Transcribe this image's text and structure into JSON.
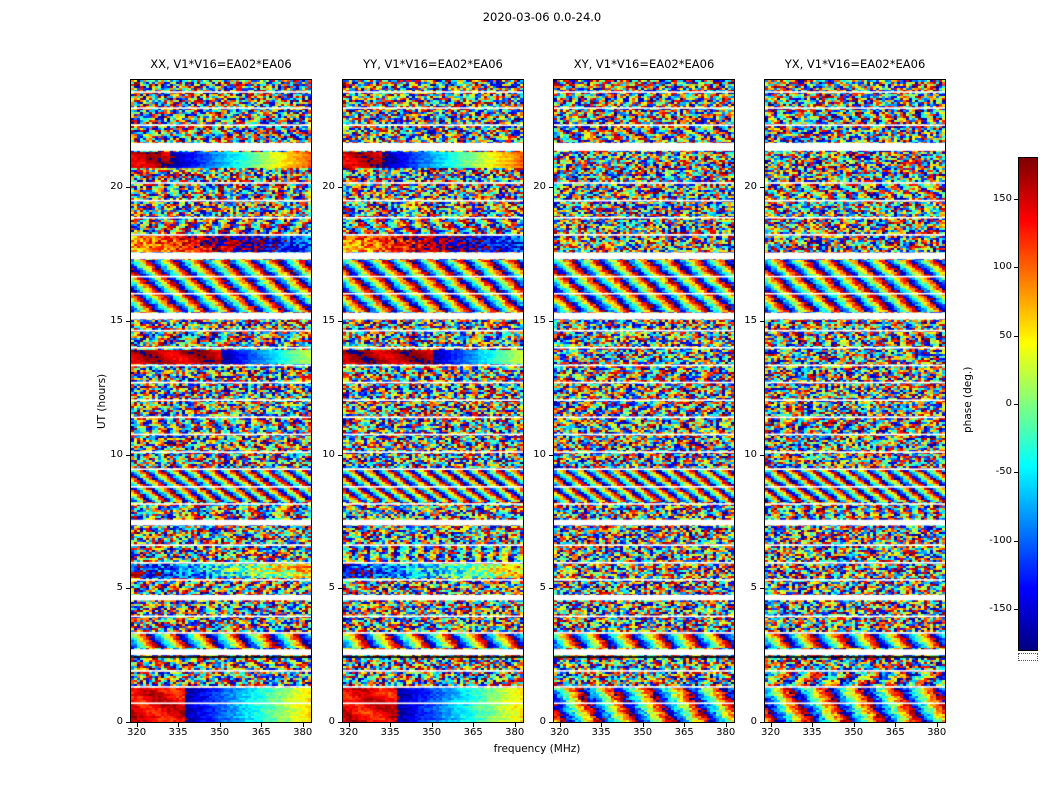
{
  "chart_data": {
    "type": "heatmap",
    "title": "2020-03-06 0.0-24.0",
    "xlabel": "frequency (MHz)",
    "ylabel": "UT (hours)",
    "value_label": "phase (deg.)",
    "colormap": "jet",
    "value_range": [
      -180,
      180
    ],
    "x_range": [
      318,
      383
    ],
    "y_range": [
      0,
      24
    ],
    "x_ticks": [
      320,
      335,
      350,
      365,
      380
    ],
    "y_ticks": [
      0,
      5,
      10,
      15,
      20
    ],
    "colorbar_ticks": [
      150,
      100,
      50,
      0,
      -50,
      -100,
      -150
    ],
    "panels": [
      {
        "title": "XX, V1*V16=EA02*EA06",
        "seed": 101
      },
      {
        "title": "YY, V1*V16=EA02*EA06",
        "seed": 202
      },
      {
        "title": "XY, V1*V16=EA02*EA06",
        "seed": 303
      },
      {
        "title": "YX, V1*V16=EA02*EA06",
        "seed": 404
      }
    ],
    "time_gaps_ut": [
      {
        "ut": [
          0.67,
          0.73
        ]
      },
      {
        "ut": [
          1.28,
          1.34
        ]
      },
      {
        "ut": [
          1.88,
          1.94
        ]
      },
      {
        "ut": [
          2.4,
          2.46
        ],
        "color": "#000000"
      },
      {
        "ut": [
          2.5,
          2.72
        ]
      },
      {
        "ut": [
          3.3,
          3.36
        ]
      },
      {
        "ut": [
          3.92,
          3.98
        ]
      },
      {
        "ut": [
          4.55,
          4.75
        ]
      },
      {
        "ut": [
          5.28,
          5.34
        ]
      },
      {
        "ut": [
          5.92,
          5.98
        ]
      },
      {
        "ut": [
          6.58,
          6.64
        ]
      },
      {
        "ut": [
          7.35,
          7.56
        ]
      },
      {
        "ut": [
          8.12,
          8.18
        ]
      },
      {
        "ut": [
          8.76,
          8.82
        ]
      },
      {
        "ut": [
          9.42,
          9.48
        ]
      },
      {
        "ut": [
          10.06,
          10.12
        ]
      },
      {
        "ut": [
          10.72,
          10.78
        ]
      },
      {
        "ut": [
          11.36,
          11.42
        ]
      },
      {
        "ut": [
          12.0,
          12.06
        ]
      },
      {
        "ut": [
          12.66,
          12.72
        ]
      },
      {
        "ut": [
          13.3,
          13.36
        ]
      },
      {
        "ut": [
          13.96,
          14.02
        ]
      },
      {
        "ut": [
          14.6,
          14.66
        ]
      },
      {
        "ut": [
          15.05,
          15.3
        ]
      },
      {
        "ut": [
          15.98,
          16.04
        ]
      },
      {
        "ut": [
          16.62,
          16.68
        ]
      },
      {
        "ut": [
          17.3,
          17.55
        ]
      },
      {
        "ut": [
          18.18,
          18.24
        ]
      },
      {
        "ut": [
          18.82,
          18.88
        ]
      },
      {
        "ut": [
          19.46,
          19.52
        ]
      },
      {
        "ut": [
          20.12,
          20.18
        ]
      },
      {
        "ut": [
          21.35,
          21.65
        ]
      },
      {
        "ut": [
          22.28,
          22.34
        ]
      },
      {
        "ut": [
          22.92,
          22.98
        ]
      },
      {
        "ut": [
          23.52,
          23.58
        ]
      }
    ],
    "coherent_bands": [
      {
        "panels": [
          0,
          1
        ],
        "ut": [
          20.7,
          21.33
        ],
        "type": "twozone",
        "split": 0.22,
        "left": 155,
        "right0": -175,
        "rkf": 1.0,
        "noise": 14
      },
      {
        "panels": [
          0,
          1
        ],
        "ut": [
          13.38,
          13.94
        ],
        "type": "twozone",
        "split": 0.5,
        "left": 160,
        "right0": -170,
        "rkf": 1.1,
        "noise": 12
      },
      {
        "panels": [
          0,
          1
        ],
        "ut": [
          0.02,
          1.26
        ],
        "type": "twozone",
        "split": 0.3,
        "left": 140,
        "right0": -170,
        "rkf": 0.9,
        "noise": 18
      },
      {
        "panels": [
          2,
          3
        ],
        "ut": [
          0.02,
          1.26
        ],
        "type": "fringe",
        "kf": 5,
        "kt": 0.5,
        "phase0": 60,
        "noise": 45
      },
      {
        "panels": [
          0,
          1,
          2,
          3
        ],
        "ut": [
          15.32,
          17.28
        ],
        "type": "fringe",
        "kf": 7,
        "kt": 1.2,
        "phase0": 40,
        "noise": 38
      },
      {
        "panels": [
          0,
          1,
          2,
          3
        ],
        "ut": [
          2.76,
          3.28
        ],
        "type": "fringe",
        "kf": 6,
        "kt": 0.8,
        "phase0": 120,
        "noise": 32
      },
      {
        "panels": [
          0,
          1
        ],
        "ut": [
          17.58,
          18.16
        ],
        "type": "fringe",
        "kf": 0.5,
        "kt": 0.1,
        "phase0": 150,
        "noise": 55
      },
      {
        "panels": [
          0,
          1,
          2,
          3
        ],
        "ut": [
          8.2,
          9.4
        ],
        "type": "fringe",
        "kf": 10,
        "kt": 2.0,
        "phase0": 0,
        "noise": 40
      },
      {
        "panels": [
          0,
          1
        ],
        "ut": [
          5.36,
          5.9
        ],
        "type": "fringe",
        "kf": 0.6,
        "kt": 0.2,
        "phase0": 160,
        "noise": 70
      }
    ]
  }
}
